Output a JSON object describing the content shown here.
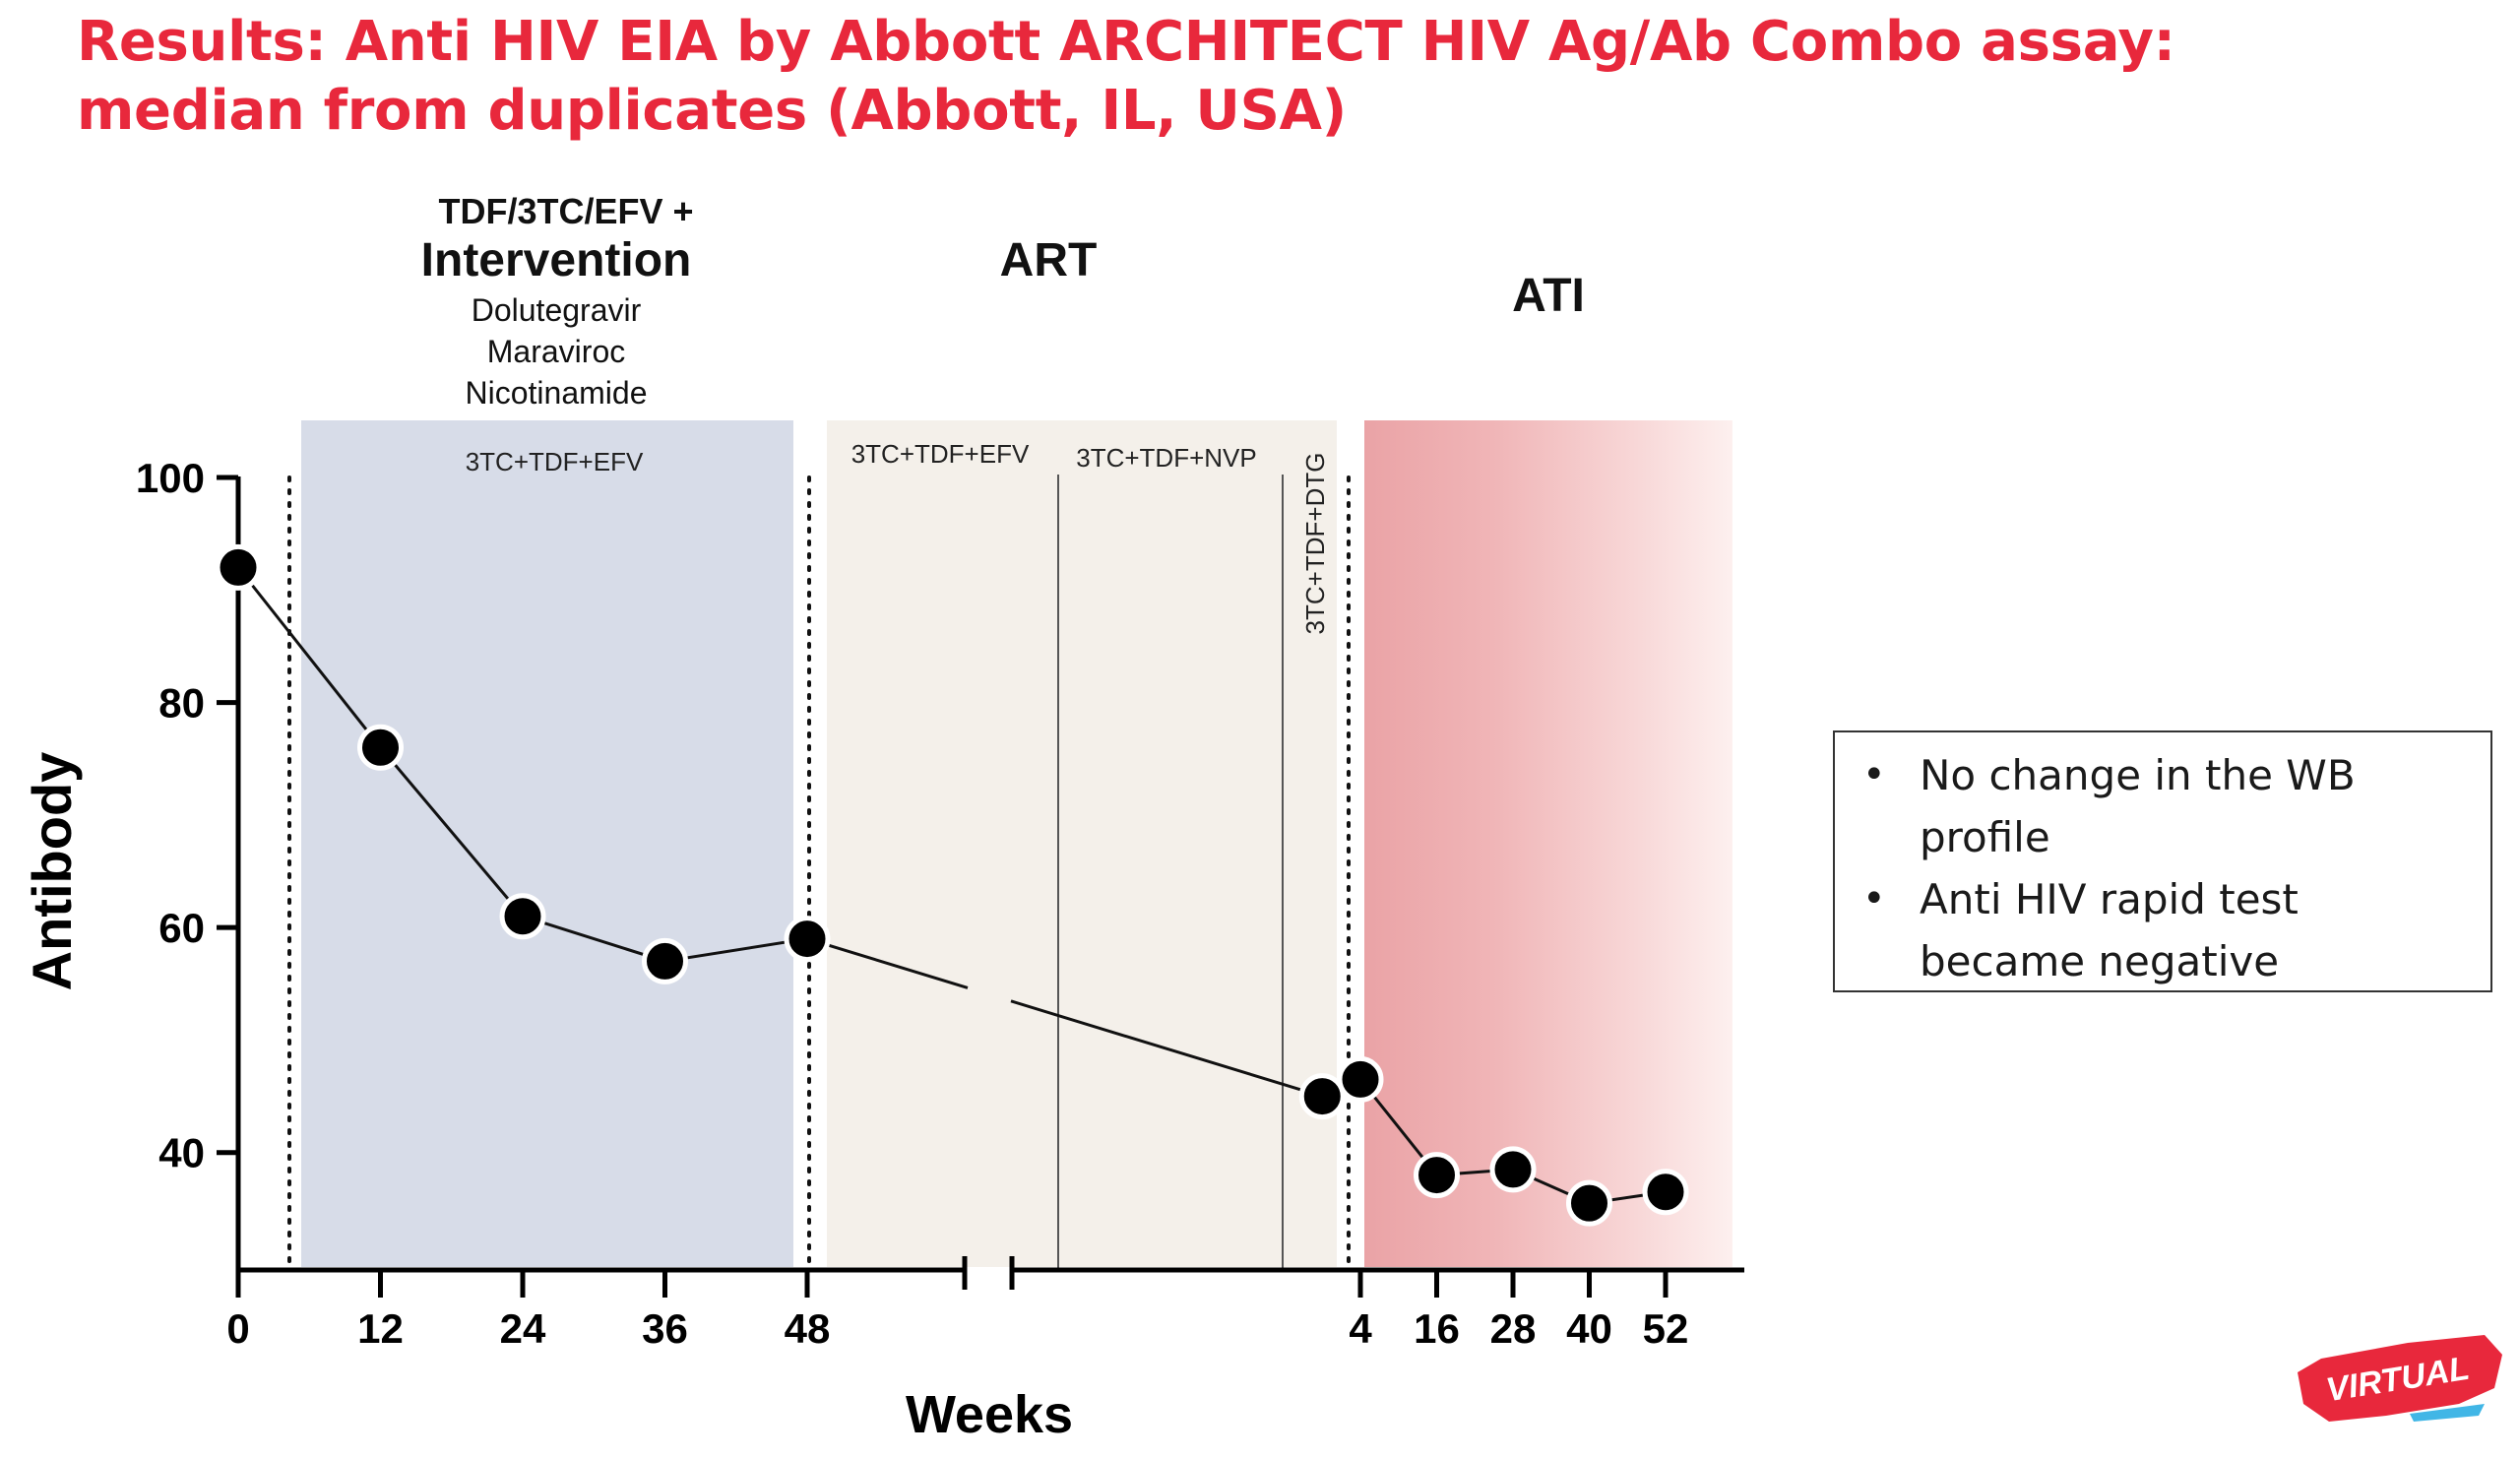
{
  "slide": {
    "title": "Results: Anti HIV EIA by Abbott ARCHITECT HIV Ag/Ab Combo assay: median from duplicates (Abbott, IL, USA)"
  },
  "notes": {
    "items": [
      "No change in the WB profile",
      "Anti HIV rapid test became negative"
    ]
  },
  "logo": {
    "text": "VIRTUAL",
    "color": "#e8283c"
  },
  "colors": {
    "accent": "#e8283c",
    "intervention_band": "#d7dce8",
    "art_band": "#f4f0ea",
    "ati_band": "#f1b3b5"
  },
  "chart_data": {
    "type": "line",
    "xlabel": "Weeks",
    "ylabel": "Antibody",
    "ylim": [
      30,
      100
    ],
    "yticks": [
      40,
      60,
      80,
      100
    ],
    "grid": false,
    "legend": "none",
    "segments": [
      {
        "name": "Intervention",
        "ticks": [
          "0",
          "12",
          "24",
          "36",
          "48"
        ],
        "x": [
          0,
          12,
          24,
          36,
          48
        ],
        "values": [
          92,
          76,
          61,
          57,
          59
        ]
      },
      {
        "name": "ATI",
        "ticks": [
          "4",
          "16",
          "28",
          "40",
          "52"
        ],
        "x": [
          -2,
          4,
          16,
          28,
          40,
          52
        ],
        "values": [
          45,
          46.5,
          38,
          38.5,
          35.5,
          36.5
        ]
      }
    ],
    "phases": [
      {
        "name": "Intervention",
        "heading": "TDF/3TC/EFV +",
        "title": "Intervention",
        "drugs": [
          "Dolutegravir",
          "Maraviroc",
          "Nicotinamide"
        ],
        "regimen": "3TC+TDF+EFV"
      },
      {
        "name": "ART",
        "title": "ART",
        "regimens": [
          "3TC+TDF+EFV",
          "3TC+TDF+NVP",
          "3TC+TDF+DTG"
        ]
      },
      {
        "name": "ATI",
        "title": "ATI"
      }
    ]
  }
}
